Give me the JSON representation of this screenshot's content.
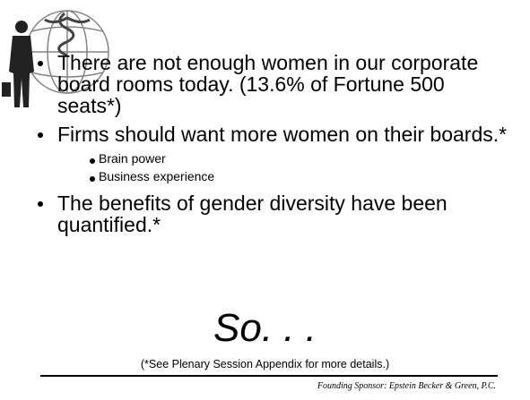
{
  "bullets": [
    {
      "text": "There are not enough women in our corporate board rooms today.  (13.6% of Fortune 500 seats*)"
    },
    {
      "text": "Firms should want more women on their boards.*",
      "sub_bullets": [
        "Brain power",
        "Business experience"
      ]
    },
    {
      "text": "The benefits of gender diversity have been quantified.*"
    }
  ],
  "emphasis": "So. . .",
  "footnote": "(*See Plenary Session Appendix for more details.)",
  "sponsor": "Founding Sponsor:  Epstein Becker & Green, P.C."
}
